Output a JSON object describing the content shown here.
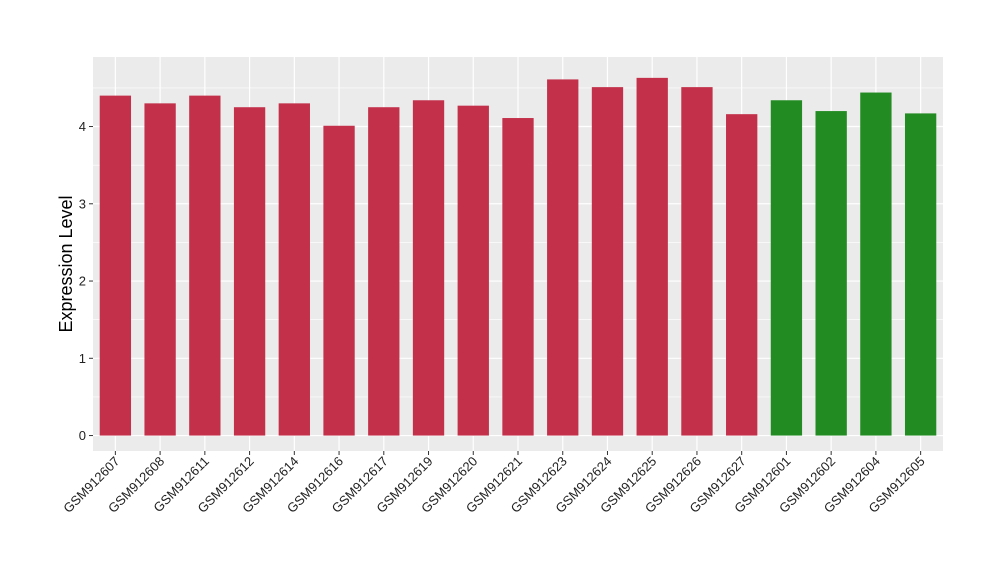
{
  "chart_data": {
    "type": "bar",
    "title": "",
    "xlabel": "",
    "ylabel": "Expression Level",
    "ylim": [
      -0.2,
      4.9
    ],
    "yticks": [
      0,
      1,
      2,
      3,
      4
    ],
    "grid": true,
    "legend": "none",
    "panel_background": "#ebebeb",
    "gridline_color": "#ffffff",
    "categories": [
      "GSM912607",
      "GSM912608",
      "GSM912611",
      "GSM912612",
      "GSM912614",
      "GSM912616",
      "GSM912617",
      "GSM912619",
      "GSM912620",
      "GSM912621",
      "GSM912623",
      "GSM912624",
      "GSM912625",
      "GSM912626",
      "GSM912627",
      "GSM912601",
      "GSM912602",
      "GSM912604",
      "GSM912605"
    ],
    "values": [
      4.4,
      4.3,
      4.4,
      4.25,
      4.3,
      4.01,
      4.25,
      4.34,
      4.27,
      4.11,
      4.61,
      4.51,
      4.63,
      4.51,
      4.16,
      4.34,
      4.2,
      4.44,
      4.17
    ],
    "bar_colors": [
      "#c3304a",
      "#c3304a",
      "#c3304a",
      "#c3304a",
      "#c3304a",
      "#c3304a",
      "#c3304a",
      "#c3304a",
      "#c3304a",
      "#c3304a",
      "#c3304a",
      "#c3304a",
      "#c3304a",
      "#c3304a",
      "#c3304a",
      "#228b22",
      "#228b22",
      "#228b22",
      "#228b22"
    ]
  }
}
